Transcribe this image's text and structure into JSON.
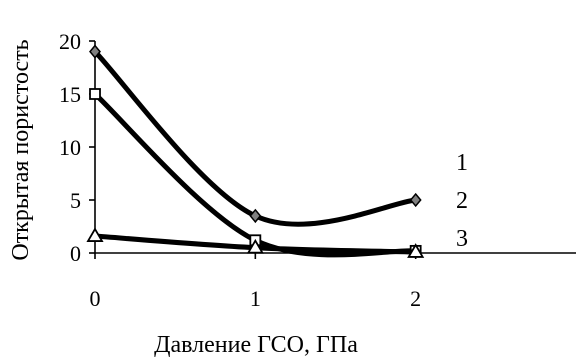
{
  "chart_data": {
    "type": "line",
    "title": "",
    "xlabel": "Давление ГСО, ГПа",
    "ylabel": "Открытая пористость",
    "x_ticks": [
      "0",
      "1",
      "2"
    ],
    "y_ticks": [
      "0",
      "5",
      "10",
      "15",
      "20"
    ],
    "xlim": [
      0,
      3
    ],
    "ylim": [
      0,
      20
    ],
    "smooth": true,
    "grid": false,
    "legend": "none",
    "series": [
      {
        "name": "1",
        "marker": "diamond",
        "points": [
          {
            "x": 0,
            "y": 19
          },
          {
            "x": 1,
            "y": 3.5
          },
          {
            "x": 2,
            "y": 5
          }
        ]
      },
      {
        "name": "2",
        "marker": "square",
        "points": [
          {
            "x": 0,
            "y": 15
          },
          {
            "x": 1,
            "y": 1.2
          },
          {
            "x": 2,
            "y": 0.2
          }
        ]
      },
      {
        "name": "3",
        "marker": "triangle",
        "points": [
          {
            "x": 0,
            "y": 1.6
          },
          {
            "x": 1,
            "y": 0.5
          },
          {
            "x": 2,
            "y": 0.1
          }
        ]
      }
    ],
    "colors": {
      "line": "#000000",
      "marker_fill": "#808080"
    }
  }
}
